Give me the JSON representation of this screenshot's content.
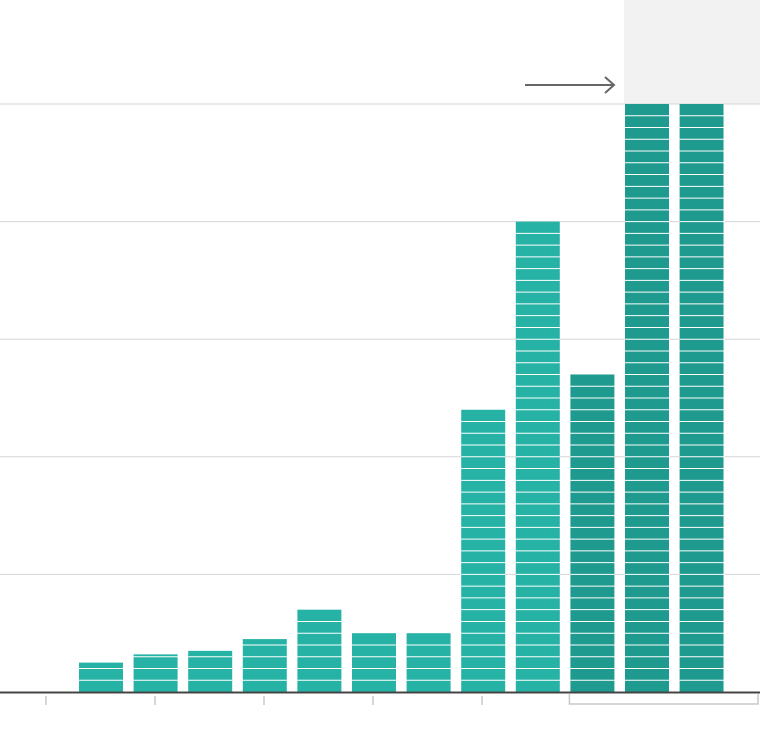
{
  "chart_data": {
    "type": "bar",
    "title": "",
    "xlabel": "",
    "ylabel": "",
    "grid": true,
    "ylim": [
      0,
      50
    ],
    "gridlines": [
      10,
      20,
      30,
      40,
      50
    ],
    "unit": 1,
    "categories": [
      "",
      "",
      "",
      "",
      "",
      "",
      "",
      "",
      "",
      "",
      "",
      ""
    ],
    "values": [
      2.5,
      3.2,
      3.5,
      4.5,
      7,
      5,
      5,
      24,
      40,
      27,
      50,
      50
    ],
    "bar_colors": [
      "#26b3a6",
      "#26b3a6",
      "#26b3a6",
      "#26b3a6",
      "#26b3a6",
      "#26b3a6",
      "#26b3a6",
      "#26b3a6",
      "#26b3a6",
      "#1e9a8e",
      "#1e9a8e",
      "#1e9a8e"
    ],
    "overflow_categories": [
      10,
      11
    ],
    "annotation": {
      "type": "arrow",
      "direction": "right",
      "y": 51
    }
  },
  "colors": {
    "bar_light": "#26b3a6",
    "bar_dark": "#1e9a8e",
    "grid": "#d6d6d6",
    "axis": "#444444",
    "tick": "#c8c8c8",
    "highlight_band": "#f2f2f2",
    "bracket": "#c8c8c8",
    "arrow": "#666666"
  }
}
